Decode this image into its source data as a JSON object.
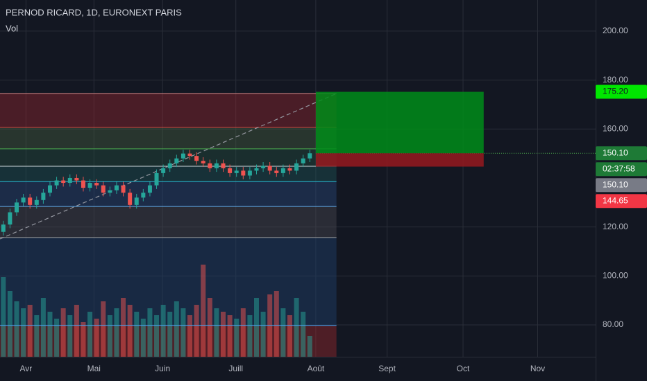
{
  "chart_data": {
    "type": "candlestick",
    "title": "PERNOD RICARD, 1D, EURONEXT PARIS",
    "volume_label": "Vol",
    "x": [
      0,
      1,
      2,
      3,
      4,
      5,
      6,
      7,
      8,
      9,
      10,
      11,
      12,
      13,
      14,
      15,
      16,
      17,
      18,
      19,
      20,
      21,
      22,
      23,
      24,
      25,
      26,
      27,
      28,
      29,
      30,
      31,
      32,
      33,
      34,
      35,
      36,
      37,
      38,
      39,
      40,
      41,
      42,
      43,
      44,
      45,
      46
    ],
    "open": [
      118,
      121,
      126,
      130,
      132,
      129,
      131,
      134,
      137,
      139,
      138,
      140,
      139,
      136,
      138,
      137,
      134,
      135,
      137,
      134,
      129,
      132,
      134,
      137,
      142,
      144,
      146,
      148,
      150,
      149,
      147,
      146,
      144,
      146,
      144,
      142,
      143,
      141,
      143,
      144,
      145,
      143,
      142,
      144,
      143,
      146,
      148
    ],
    "high": [
      122.5,
      127.5,
      131.5,
      133.5,
      133.5,
      132.5,
      135.5,
      138.5,
      140.5,
      140.5,
      141.5,
      141.5,
      140.5,
      139.5,
      139.5,
      138.5,
      136.5,
      138.5,
      138.5,
      135.5,
      133.5,
      135.5,
      138.5,
      143.5,
      145.5,
      147.5,
      149.5,
      151.5,
      151.5,
      150.5,
      148.5,
      147.5,
      147.5,
      147.5,
      145.5,
      144.5,
      144.5,
      144.5,
      145.5,
      146.5,
      146.5,
      144.5,
      145.5,
      145.5,
      147.5,
      149.5,
      151.5
    ],
    "low": [
      116.5,
      119.5,
      124.5,
      128.5,
      127.5,
      127.5,
      129.5,
      132.5,
      135.5,
      136.5,
      136.5,
      137.5,
      134.5,
      134.5,
      135.5,
      132.5,
      132.5,
      133.5,
      132.5,
      127.5,
      127.5,
      130.5,
      132.5,
      135.5,
      140.5,
      142.5,
      144.5,
      146.5,
      147.5,
      145.5,
      144.5,
      142.5,
      142.5,
      142.5,
      140.5,
      140.5,
      139.5,
      139.5,
      141.5,
      142.5,
      141.5,
      140.5,
      140.5,
      141.5,
      141.5,
      144.5,
      146.5
    ],
    "close": [
      121,
      126,
      130,
      132,
      129,
      131,
      134,
      137,
      139,
      138,
      140,
      139,
      136,
      138,
      137,
      134,
      135,
      137,
      134,
      129,
      132,
      134,
      137,
      142,
      144,
      146,
      148,
      150,
      149,
      147,
      146,
      144,
      146,
      144,
      142,
      143,
      141,
      143,
      144,
      145,
      143,
      142,
      144,
      143,
      146,
      148,
      150.1
    ],
    "volume": [
      115,
      95,
      80,
      70,
      75,
      60,
      85,
      65,
      55,
      70,
      60,
      75,
      50,
      65,
      55,
      80,
      60,
      70,
      85,
      75,
      65,
      55,
      70,
      60,
      75,
      65,
      80,
      70,
      60,
      75,
      133,
      85,
      70,
      65,
      60,
      55,
      70,
      60,
      85,
      65,
      90,
      95,
      70,
      60,
      85,
      65,
      30
    ],
    "volume_ylim": [
      0,
      180
    ],
    "up_color": "#26a69a",
    "down_color": "#ef5350",
    "xlim": [
      -0.5,
      88.9
    ],
    "xticks": [
      {
        "value": 3.4,
        "label": "Avr"
      },
      {
        "value": 13.6,
        "label": "Mai"
      },
      {
        "value": 23.9,
        "label": "Juin"
      },
      {
        "value": 34.9,
        "label": "Juill"
      },
      {
        "value": 46.9,
        "label": "Août"
      },
      {
        "value": 57.6,
        "label": "Sept"
      },
      {
        "value": 69,
        "label": "Oct"
      },
      {
        "value": 80.2,
        "label": "Nov"
      }
    ],
    "ylim": [
      67,
      212.7
    ],
    "yticks": [
      {
        "value": 80,
        "label": "80.00"
      },
      {
        "value": 100,
        "label": "100.00"
      },
      {
        "value": 120,
        "label": "120.00"
      },
      {
        "value": 160,
        "label": "160.00"
      },
      {
        "value": 180,
        "label": "180.00"
      },
      {
        "value": 200,
        "label": "200.00"
      }
    ],
    "grid": true,
    "zones": [
      {
        "y": [
          174.5,
          160.7
        ],
        "x": [
          -0.5,
          50
        ],
        "color": "rgba(178,40,50,0.35)"
      },
      {
        "y": [
          160.7,
          151.9
        ],
        "x": [
          -0.5,
          50
        ],
        "color": "rgba(80,110,70,0.35)"
      },
      {
        "y": [
          151.9,
          144.8
        ],
        "x": [
          -0.5,
          50
        ],
        "color": "rgba(40,90,70,0.35)"
      },
      {
        "y": [
          144.8,
          138.6
        ],
        "x": [
          -0.5,
          50
        ],
        "color": "rgba(30,90,90,0.4)"
      },
      {
        "y": [
          138.6,
          128.4
        ],
        "x": [
          -0.5,
          50
        ],
        "color": "rgba(40,70,120,0.45)"
      },
      {
        "y": [
          128.4,
          115.7
        ],
        "x": [
          -0.5,
          50
        ],
        "color": "rgba(70,70,80,0.45)"
      },
      {
        "y": [
          115.7,
          79.8
        ],
        "x": [
          -0.5,
          50
        ],
        "color": "rgba(30,60,100,0.5)"
      },
      {
        "y": [
          79.8,
          67
        ],
        "x": [
          -0.5,
          50
        ],
        "color": "rgba(150,40,45,0.45)"
      }
    ],
    "levels": [
      {
        "value": 174.5,
        "x": [
          -0.5,
          50
        ],
        "color": "#d88a8a"
      },
      {
        "value": 160.7,
        "x": [
          -0.5,
          50
        ],
        "color": "#e0443e"
      },
      {
        "value": 151.9,
        "x": [
          -0.5,
          50
        ],
        "color": "#4caf50"
      },
      {
        "value": 144.8,
        "x": [
          -0.5,
          50
        ],
        "color": "#cfd8dc"
      },
      {
        "value": 138.6,
        "x": [
          -0.5,
          50
        ],
        "color": "#26c6da"
      },
      {
        "value": 128.4,
        "x": [
          -0.5,
          50
        ],
        "color": "#64b5f6"
      },
      {
        "value": 115.7,
        "x": [
          -0.5,
          50
        ],
        "color": "#9e9e9e"
      },
      {
        "value": 79.8,
        "x": [
          -0.5,
          50
        ],
        "color": "#42a5f5"
      },
      {
        "value": 150.1,
        "x": [
          46.9,
          88.9
        ],
        "color": "#4caf50",
        "style": "dotted"
      }
    ],
    "trendline": {
      "x": [
        -0.5,
        50
      ],
      "y": [
        115.1,
        174.5
      ],
      "color": "#9598a1",
      "style": "dashed"
    },
    "position": {
      "x": [
        46.9,
        72.1
      ],
      "entry": 150.1,
      "target": 175.2,
      "stop": 144.65,
      "profit_color": "rgba(0,140,25,0.85)",
      "loss_color": "rgba(150,25,30,0.85)"
    },
    "badges": [
      {
        "label": "175.20",
        "value": 175.2,
        "color": "#00e600",
        "text_color": "#131722"
      },
      {
        "label": "150.10",
        "value": 150.1,
        "color": "#1e7a36",
        "text_color": "#ffffff"
      },
      {
        "label": "02:37:58",
        "color": "#1e7a36",
        "text_color": "#ffffff"
      },
      {
        "label": "150.10",
        "value": 150.1,
        "color": "#787b86",
        "text_color": "#ffffff"
      },
      {
        "label": "144.65",
        "value": 144.65,
        "color": "#f23645",
        "text_color": "#ffffff"
      }
    ]
  }
}
